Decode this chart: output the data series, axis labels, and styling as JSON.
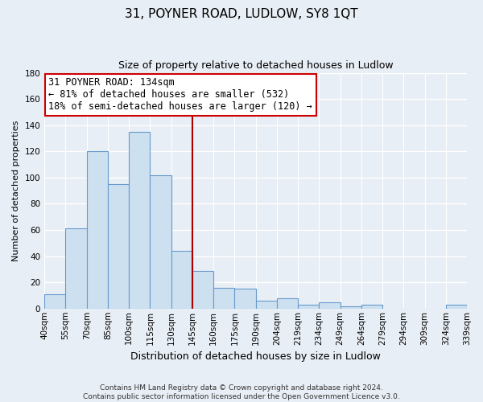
{
  "title": "31, POYNER ROAD, LUDLOW, SY8 1QT",
  "subtitle": "Size of property relative to detached houses in Ludlow",
  "xlabel": "Distribution of detached houses by size in Ludlow",
  "ylabel": "Number of detached properties",
  "bar_labels": [
    "40sqm",
    "55sqm",
    "70sqm",
    "85sqm",
    "100sqm",
    "115sqm",
    "130sqm",
    "145sqm",
    "160sqm",
    "175sqm",
    "190sqm",
    "204sqm",
    "219sqm",
    "234sqm",
    "249sqm",
    "264sqm",
    "279sqm",
    "294sqm",
    "309sqm",
    "324sqm",
    "339sqm"
  ],
  "bar_values": [
    11,
    61,
    120,
    95,
    135,
    102,
    44,
    29,
    16,
    15,
    6,
    8,
    3,
    5,
    2,
    3,
    0,
    0,
    0,
    3
  ],
  "bar_color": "#cce0f0",
  "bar_edge_color": "#6699cc",
  "vline_after_bar_index": 6,
  "vline_color": "#aa0000",
  "annotation_line1": "31 POYNER ROAD: 134sqm",
  "annotation_line2": "← 81% of detached houses are smaller (532)",
  "annotation_line3": "18% of semi-detached houses are larger (120) →",
  "annotation_box_color": "#ffffff",
  "annotation_box_edge": "#cc0000",
  "ylim": [
    0,
    180
  ],
  "yticks": [
    0,
    20,
    40,
    60,
    80,
    100,
    120,
    140,
    160,
    180
  ],
  "footer_line1": "Contains HM Land Registry data © Crown copyright and database right 2024.",
  "footer_line2": "Contains public sector information licensed under the Open Government Licence v3.0.",
  "bg_color": "#e8eef5",
  "grid_color": "#ffffff",
  "title_fontsize": 11,
  "subtitle_fontsize": 9,
  "ylabel_fontsize": 8,
  "xlabel_fontsize": 9,
  "tick_fontsize": 7.5,
  "annotation_fontsize": 8.5
}
